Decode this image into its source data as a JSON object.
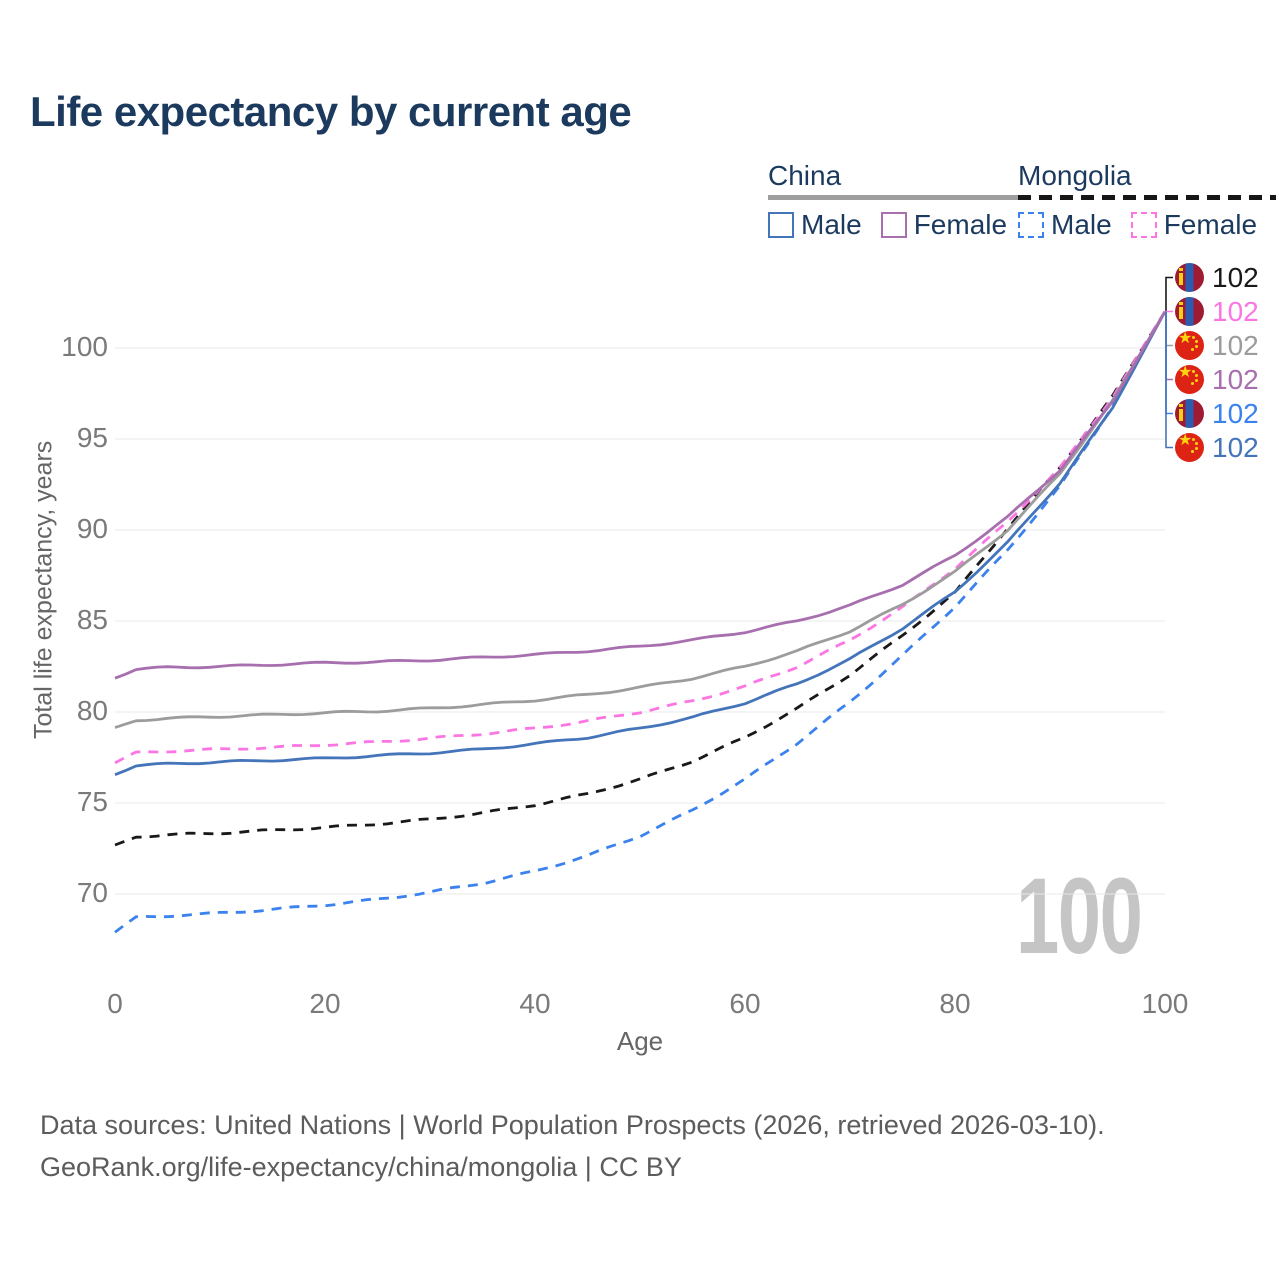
{
  "title": "Life expectancy by current age",
  "watermark_age": "100",
  "legend": {
    "groups": [
      {
        "name": "China",
        "line_style": "solid",
        "line_color": "#9e9e9e",
        "items": [
          {
            "label": "Male",
            "color": "#4474b9",
            "dashed": false
          },
          {
            "label": "Female",
            "color": "#a76fae",
            "dashed": false
          }
        ]
      },
      {
        "name": "Mongolia",
        "line_style": "dashed",
        "line_color": "#161616",
        "items": [
          {
            "label": "Male",
            "color": "#3b82ee",
            "dashed": true
          },
          {
            "label": "Female",
            "color": "#fb76e3",
            "dashed": true
          }
        ]
      }
    ]
  },
  "chart_data": {
    "type": "line",
    "title": "Life expectancy by current age",
    "xlabel": "Age",
    "ylabel": "Total life expectancy, years",
    "xlim": [
      0,
      100
    ],
    "ylim": [
      67,
      103
    ],
    "x_ticks": [
      "0",
      "20",
      "40",
      "60",
      "80",
      "100"
    ],
    "y_ticks": [
      "70",
      "75",
      "80",
      "85",
      "90",
      "95",
      "100"
    ],
    "grid": "horizontal",
    "legend_position": "top-right",
    "x": [
      0,
      2,
      5,
      10,
      15,
      20,
      25,
      30,
      35,
      40,
      45,
      50,
      55,
      60,
      65,
      70,
      75,
      80,
      85,
      90,
      95,
      100
    ],
    "series": [
      {
        "id": "mongolia-male",
        "country": "Mongolia",
        "sex": "Male",
        "color": "#3b82ee",
        "dashed": true,
        "values": [
          67.9,
          68.7,
          68.8,
          68.95,
          69.15,
          69.4,
          69.7,
          70.1,
          70.6,
          71.25,
          72.1,
          73.2,
          74.6,
          76.3,
          78.3,
          80.55,
          83.1,
          85.8,
          88.9,
          92.4,
          96.8,
          102
        ]
      },
      {
        "id": "mongolia-total",
        "country": "Mongolia",
        "sex": "Total",
        "color": "#191919",
        "dashed": true,
        "values": [
          72.65,
          73.15,
          73.25,
          73.35,
          73.5,
          73.65,
          73.85,
          74.1,
          74.45,
          74.9,
          75.5,
          76.3,
          77.3,
          78.6,
          80.2,
          82.05,
          84.2,
          86.55,
          90.1,
          93.45,
          97.35,
          102
        ]
      },
      {
        "id": "china-male",
        "country": "China",
        "sex": "Male",
        "color": "#4474b9",
        "dashed": false,
        "values": [
          76.6,
          77.05,
          77.15,
          77.25,
          77.35,
          77.45,
          77.6,
          77.75,
          77.95,
          78.25,
          78.6,
          79.1,
          79.7,
          80.5,
          81.55,
          82.9,
          84.6,
          86.6,
          89.3,
          92.6,
          96.7,
          102
        ]
      },
      {
        "id": "mongolia-female",
        "country": "Mongolia",
        "sex": "Female",
        "color": "#fb76e3",
        "dashed": true,
        "values": [
          77.2,
          77.75,
          77.85,
          77.95,
          78.05,
          78.2,
          78.35,
          78.55,
          78.8,
          79.1,
          79.5,
          80.0,
          80.6,
          81.4,
          82.5,
          83.95,
          85.75,
          87.9,
          90.45,
          93.4,
          97.3,
          102
        ]
      },
      {
        "id": "china-total",
        "country": "China",
        "sex": "Total",
        "color": "#9c9c9c",
        "dashed": false,
        "values": [
          79.1,
          79.55,
          79.65,
          79.75,
          79.85,
          79.95,
          80.05,
          80.2,
          80.4,
          80.65,
          80.95,
          81.35,
          81.85,
          82.5,
          83.35,
          84.45,
          85.9,
          87.7,
          90.0,
          93.1,
          97.1,
          102
        ]
      },
      {
        "id": "china-female",
        "country": "China",
        "sex": "Female",
        "color": "#a76fae",
        "dashed": false,
        "values": [
          81.9,
          82.35,
          82.45,
          82.5,
          82.6,
          82.7,
          82.75,
          82.85,
          83.0,
          83.15,
          83.35,
          83.6,
          83.95,
          84.4,
          85.0,
          85.85,
          87.0,
          88.6,
          90.7,
          93.3,
          97.05,
          102
        ]
      }
    ],
    "end_labels": [
      {
        "series": "mongolia-total",
        "flag": "mongolia",
        "value": "102",
        "color": "#191919"
      },
      {
        "series": "mongolia-female",
        "flag": "mongolia",
        "value": "102",
        "color": "#fb76e3"
      },
      {
        "series": "china-total",
        "flag": "china",
        "value": "102",
        "color": "#9c9c9c"
      },
      {
        "series": "china-female",
        "flag": "china",
        "value": "102",
        "color": "#a76fae"
      },
      {
        "series": "mongolia-male",
        "flag": "mongolia",
        "value": "102",
        "color": "#3b82ee"
      },
      {
        "series": "china-male",
        "flag": "china",
        "value": "102",
        "color": "#4474b9"
      }
    ]
  },
  "footer": {
    "line1": "Data sources: United Nations | World Population Prospects (2026, retrieved 2026-03-10).",
    "line2": "GeoRank.org/life-expectancy/china/mongolia | CC BY"
  }
}
